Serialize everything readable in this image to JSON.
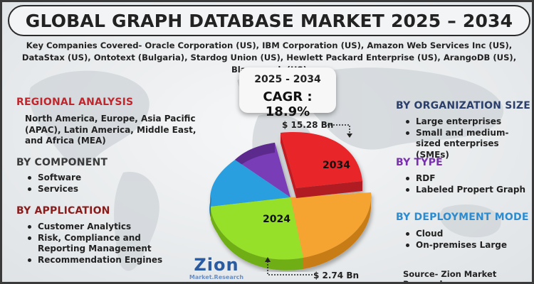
{
  "title": "GLOBAL GRAPH DATABASE MARKET 2025 – 2034",
  "companies_text": "Key Companies Covered- Oracle Corporation (US), IBM Corporation (US), Amazon Web Services Inc (US), DataStax (US), Ontotext (Bulgaria), Stardog Union (US), Hewlett Packard Enterprise (US), ArangoDB (US), Blazegraph (US)",
  "cagr": {
    "years": "2025 - 2034",
    "value": "CAGR : 18.9%"
  },
  "regional": {
    "heading": "REGIONAL ANALYSIS",
    "text": "North America, Europe, Asia Pacific (APAC), Latin America, Middle East, and Africa (MEA)"
  },
  "component": {
    "heading": "BY COMPONENT",
    "items": [
      "Software",
      "Services"
    ]
  },
  "application": {
    "heading": "BY APPLICATION",
    "items": [
      "Customer Analytics",
      "Risk, Compliance and Reporting Management",
      "Recommendation Engines"
    ]
  },
  "organization": {
    "heading": "BY ORGANIZATION SIZE",
    "items": [
      "Large enterprises",
      "Small and medium-sized enterprises (SMEs)"
    ]
  },
  "type": {
    "heading": "BY TYPE",
    "items": [
      "RDF",
      "Labeled Propert Graph"
    ]
  },
  "deployment": {
    "heading": "BY DEPLOYMENT MODE",
    "items": [
      "Cloud",
      "On-premises Large"
    ]
  },
  "pie": {
    "label_2034": "2034",
    "label_2024": "2024",
    "value_2034": "$ 15.28 Bn",
    "value_2024": "$ 2.74 Bn",
    "colors": {
      "red": "#e8262c",
      "orange": "#f5a431",
      "green": "#96e02a",
      "blue": "#2a9fe0",
      "purple": "#7a3db8"
    }
  },
  "logo": {
    "main": "Zion",
    "sub": "Market.Research"
  },
  "source": "Source- Zion Market Research"
}
